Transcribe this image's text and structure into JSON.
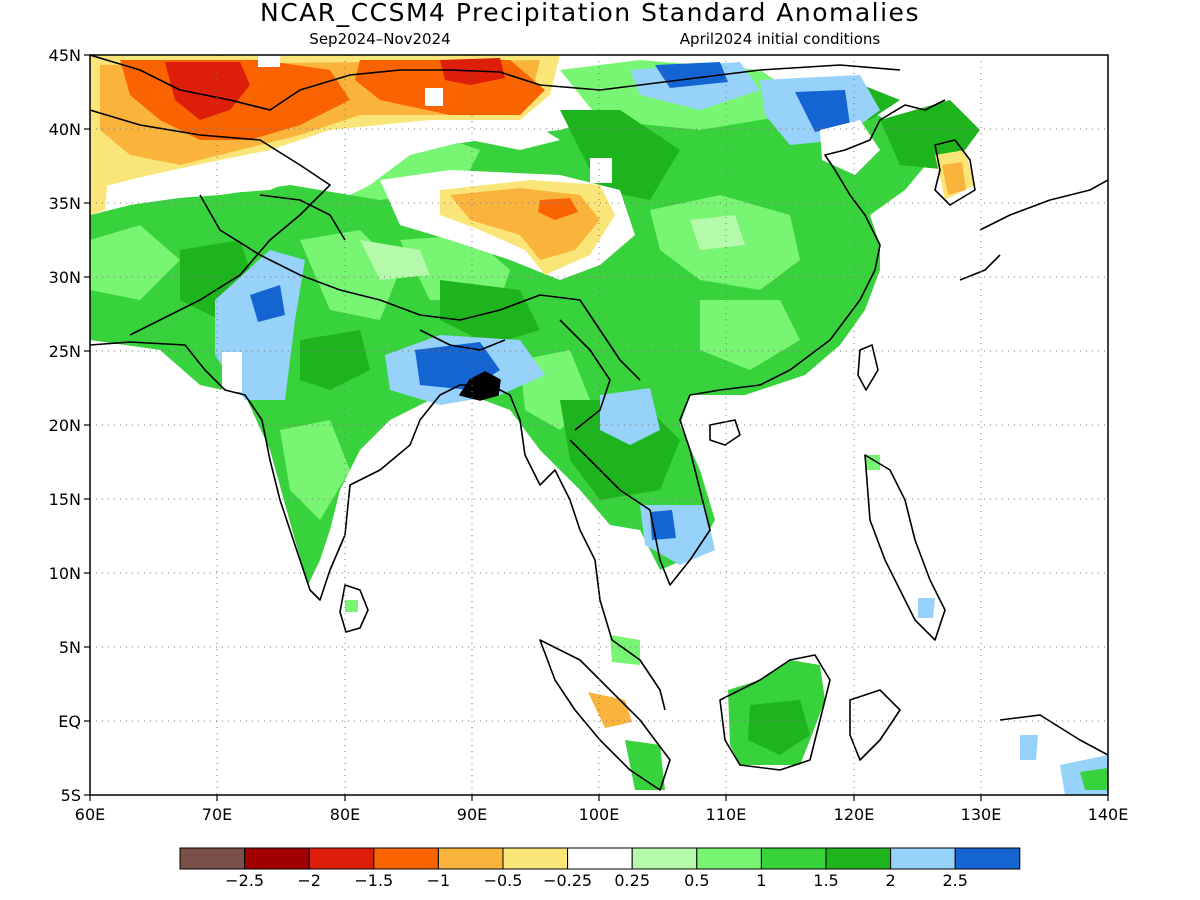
{
  "title": "NCAR_CCSM4 Precipitation Standard Anomalies",
  "subtitle_left": "Sep2024–Nov2024",
  "subtitle_right": "April2024 initial conditions",
  "map": {
    "lon_range": [
      60,
      140
    ],
    "lat_range": [
      -5,
      45
    ],
    "lat_labels": [
      "45N",
      "40N",
      "35N",
      "30N",
      "25N",
      "20N",
      "15N",
      "10N",
      "5N",
      "EQ",
      "5S"
    ],
    "lon_labels": [
      "60E",
      "70E",
      "80E",
      "90E",
      "100E",
      "110E",
      "120E",
      "130E",
      "140E"
    ],
    "grid": "dotted",
    "land_colour": "#ffffff",
    "coast_colour": "#000000"
  },
  "colorbar": {
    "colors": [
      "#7a5048",
      "#a00000",
      "#dc1e0a",
      "#fa6400",
      "#fab43c",
      "#fae678",
      "#ffffff",
      "#b4faaa",
      "#78f573",
      "#37d23c",
      "#1eb41e",
      "#96d2fa",
      "#1464d2"
    ],
    "labels": [
      "−2.5",
      "−2",
      "−1.5",
      "−1",
      "−0.5",
      "−0.25",
      "0.25",
      "0.5",
      "1",
      "1.5",
      "2",
      "2.5"
    ]
  }
}
